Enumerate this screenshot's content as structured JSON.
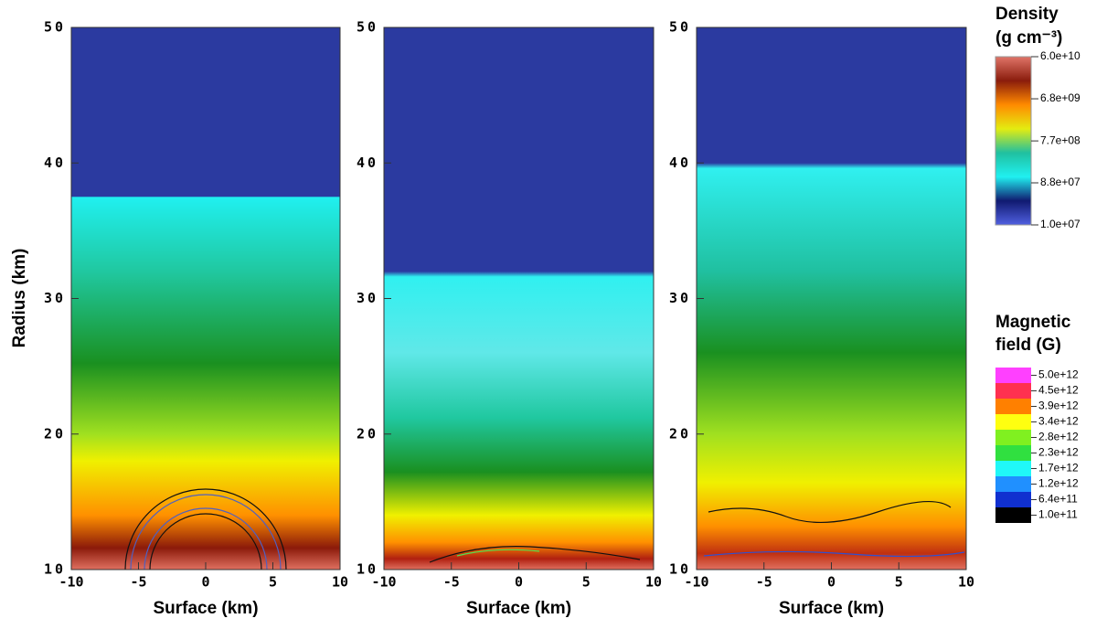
{
  "chart_data": [
    {
      "type": "heatmap",
      "xlabel": "Surface (km)",
      "ylabel": "Radius (km)",
      "xlim": [
        -10,
        10
      ],
      "ylim": [
        10,
        50
      ],
      "xticks": [
        -10,
        -5,
        0,
        5,
        10
      ],
      "yticks": [
        10,
        20,
        30,
        40,
        50
      ]
    },
    {
      "type": "heatmap",
      "xlabel": "Surface (km)",
      "xlim": [
        -10,
        10
      ],
      "ylim": [
        10,
        50
      ],
      "xticks": [
        -10,
        -5,
        0,
        5,
        10
      ],
      "yticks": [
        10,
        20,
        30,
        40,
        50
      ]
    },
    {
      "type": "heatmap",
      "xlabel": "Surface (km)",
      "xlim": [
        -10,
        10
      ],
      "ylim": [
        10,
        50
      ],
      "xticks": [
        -10,
        -5,
        0,
        5,
        10
      ],
      "yticks": [
        10,
        20,
        30,
        40,
        50
      ]
    }
  ],
  "colorbars": [
    {
      "title": "Density",
      "unit": "(g cm⁻³)",
      "scale": "log",
      "lim": [
        10000000,
        60000000000
      ],
      "colors": [
        "#e07468",
        "#8a1c0c",
        "#ff8a00",
        "#e4ec10",
        "#20c0a0",
        "#20f0f0",
        "#101a70",
        "#5060e0"
      ],
      "ticks": [
        {
          "value": 60000000000,
          "label": "6.0e+10"
        },
        {
          "value": 6800000000,
          "label": "6.8e+09"
        },
        {
          "value": 770000000,
          "label": "7.7e+08"
        },
        {
          "value": 88000000,
          "label": "8.8e+07"
        },
        {
          "value": 10000000,
          "label": "1.0e+07"
        }
      ]
    },
    {
      "title": "Magnetic",
      "unit": "field (G)",
      "levels": [
        {
          "value": 5000000000000,
          "label": "5.0e+12",
          "color": "#ff40ff"
        },
        {
          "value": 4500000000000,
          "label": "4.5e+12",
          "color": "#ff3050"
        },
        {
          "value": 3900000000000,
          "label": "3.9e+12",
          "color": "#ff8000"
        },
        {
          "value": 3400000000000,
          "label": "3.4e+12",
          "color": "#ffff10"
        },
        {
          "value": 2800000000000,
          "label": "2.8e+12",
          "color": "#80f020"
        },
        {
          "value": 2300000000000,
          "label": "2.3e+12",
          "color": "#30e040"
        },
        {
          "value": 1700000000000,
          "label": "1.7e+12",
          "color": "#20f8f8"
        },
        {
          "value": 1200000000000,
          "label": "1.2e+12",
          "color": "#2090ff"
        },
        {
          "value": 640000000000,
          "label": "6.4e+11",
          "color": "#1030d0"
        },
        {
          "value": 100000000000,
          "label": "1.0e+11",
          "color": "#000000"
        }
      ]
    }
  ]
}
